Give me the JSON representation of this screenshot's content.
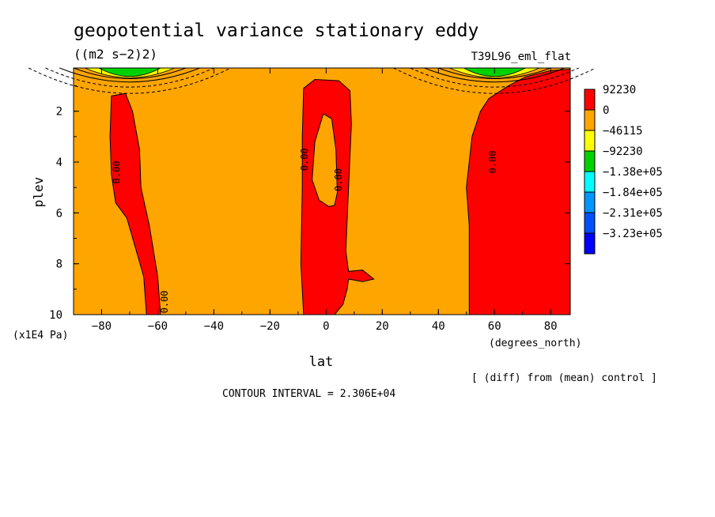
{
  "chart_data": {
    "type": "filled-contour",
    "title": "geopotential variance stationary eddy",
    "units": "((m2 s−2)2)",
    "run_label": "T39L96_eml_flat",
    "xlabel": "lat",
    "x_units": "(degrees_north)",
    "ylabel": "plev",
    "y_units": "(x1E4 Pa)",
    "xlim": [
      -90,
      87
    ],
    "ylim": [
      10,
      0.3
    ],
    "x_ticks": [
      -80,
      -60,
      -40,
      -20,
      0,
      20,
      40,
      60,
      80
    ],
    "y_ticks": [
      2,
      4,
      6,
      8,
      10
    ],
    "contour_label": "0.00",
    "legend": [
      {
        "label": "92230",
        "color": "#ff0000"
      },
      {
        "label": "0",
        "color": "#ffa500"
      },
      {
        "label": "−46115",
        "color": "#ffff00"
      },
      {
        "label": "−92230",
        "color": "#00d200"
      },
      {
        "label": "−1.38e+05",
        "color": "#00ffff"
      },
      {
        "label": "−1.84e+05",
        "color": "#0096ff"
      },
      {
        "label": "−2.31e+05",
        "color": "#0050ff"
      },
      {
        "label": "−3.23e+05",
        "color": "#0000ff"
      }
    ],
    "background_color": "#ffa500",
    "positive_color": "#ff0000",
    "regions": [
      {
        "name": "left-column",
        "points": [
          [
            -76.5,
            1.4
          ],
          [
            -71.5,
            1.3
          ],
          [
            -69,
            2.0
          ],
          [
            -66.5,
            3.5
          ],
          [
            -66,
            5.0
          ],
          [
            -63,
            6.5
          ],
          [
            -60,
            8.5
          ],
          [
            -59,
            10
          ],
          [
            -64,
            10
          ],
          [
            -65,
            8.5
          ],
          [
            -71,
            6.2
          ],
          [
            -75,
            5.6
          ],
          [
            -76.5,
            4.5
          ],
          [
            -77,
            3.0
          ]
        ]
      },
      {
        "name": "center-column",
        "points": [
          [
            -8,
            1.1
          ],
          [
            -4,
            0.75
          ],
          [
            4.5,
            0.8
          ],
          [
            8.5,
            1.2
          ],
          [
            9,
            2.5
          ],
          [
            8,
            5.0
          ],
          [
            7,
            7.5
          ],
          [
            8,
            8.3
          ],
          [
            13,
            8.25
          ],
          [
            17,
            8.6
          ],
          [
            13,
            8.7
          ],
          [
            8,
            8.6
          ],
          [
            7.5,
            9.0
          ],
          [
            6,
            9.6
          ],
          [
            3,
            10
          ],
          [
            -8,
            10
          ],
          [
            -9,
            8.0
          ],
          [
            -8.5,
            5.0
          ],
          [
            -8.5,
            3.0
          ]
        ]
      },
      {
        "name": "right-region",
        "points": [
          [
            52,
            3.0
          ],
          [
            55,
            2.0
          ],
          [
            58,
            1.5
          ],
          [
            65,
            1.0
          ],
          [
            71,
            0.65
          ],
          [
            80,
            0.4
          ],
          [
            87,
            0.35
          ],
          [
            87,
            10
          ],
          [
            51,
            10
          ],
          [
            51,
            6.5
          ],
          [
            50,
            5.0
          ]
        ]
      }
    ],
    "hole": {
      "name": "center-hole",
      "points": [
        [
          -1,
          2.1
        ],
        [
          2,
          2.3
        ],
        [
          3.5,
          3.5
        ],
        [
          4,
          5.2
        ],
        [
          3,
          5.7
        ],
        [
          1,
          5.75
        ],
        [
          -2.5,
          5.5
        ],
        [
          -5,
          4.7
        ],
        [
          -4,
          3.2
        ]
      ]
    },
    "polar_negative_contours": [
      {
        "center_lat": -70,
        "rings": [
          {
            "half_width": 36,
            "dip": 1.0,
            "dashed": true
          },
          {
            "half_width": 30,
            "dip": 0.75,
            "dashed": true
          },
          {
            "half_width": 25,
            "dip": 0.55,
            "dashed": false
          },
          {
            "half_width": 20,
            "dip": 0.42,
            "dashed": false
          }
        ],
        "fills": [
          {
            "half_width": 16,
            "dip": 0.38,
            "color": "#ffff00"
          },
          {
            "half_width": 11,
            "dip": 0.33,
            "color": "#00d200"
          }
        ]
      },
      {
        "center_lat": 60,
        "rings": [
          {
            "half_width": 36,
            "dip": 1.0,
            "dashed": true
          },
          {
            "half_width": 30,
            "dip": 0.75,
            "dashed": true
          },
          {
            "half_width": 25,
            "dip": 0.55,
            "dashed": false
          },
          {
            "half_width": 20,
            "dip": 0.42,
            "dashed": false
          }
        ],
        "fills": [
          {
            "half_width": 16,
            "dip": 0.38,
            "color": "#ffff00"
          },
          {
            "half_width": 11,
            "dip": 0.33,
            "color": "#00d200"
          }
        ]
      }
    ],
    "contour_labels": [
      {
        "lat": -74.5,
        "plev": 4.4
      },
      {
        "lat": -57.5,
        "plev": 9.5
      },
      {
        "lat": -7.5,
        "plev": 3.9
      },
      {
        "lat": 4.5,
        "plev": 4.7
      },
      {
        "lat": 59.5,
        "plev": 4.0
      }
    ],
    "footnote": "[ (diff) from (mean) control ]",
    "contour_interval": "CONTOUR INTERVAL = 2.306E+04"
  }
}
